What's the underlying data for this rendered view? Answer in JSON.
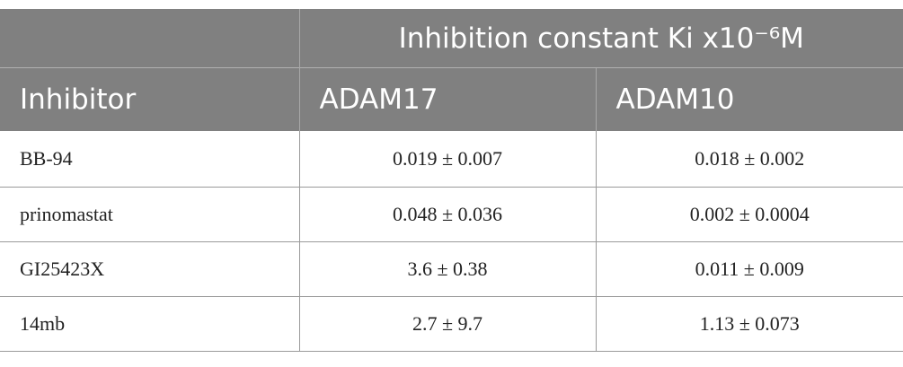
{
  "table": {
    "group_header": "Inhibition constant Ki x10⁻⁶M",
    "columns": [
      "Inhibitor",
      "ADAM17",
      "ADAM10"
    ],
    "rows": [
      [
        "BB-94",
        "0.019 ± 0.007",
        "0.018 ± 0.002"
      ],
      [
        "prinomastat",
        "0.048 ± 0.036",
        "0.002 ± 0.0004"
      ],
      [
        "GI25423X",
        "3.6 ± 0.38",
        "0.011 ± 0.009"
      ],
      [
        "14mb",
        "2.7 ± 9.7",
        "1.13 ± 0.073"
      ]
    ]
  }
}
